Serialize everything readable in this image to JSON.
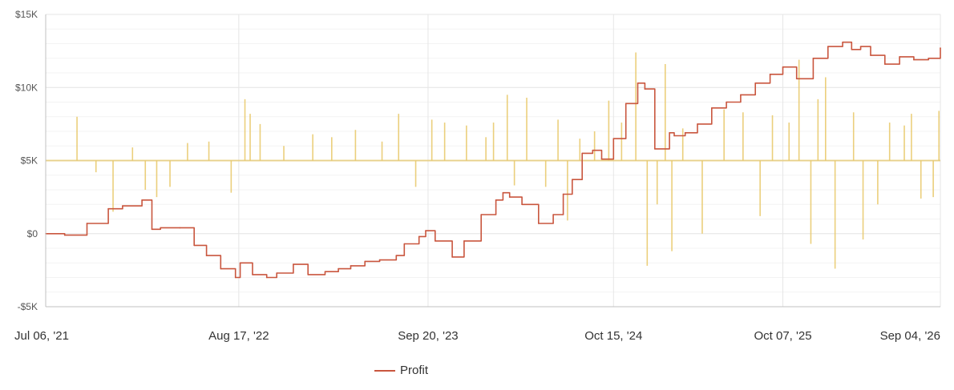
{
  "chart_data": {
    "type": "line",
    "y_tick_labels": [
      "$15K",
      "$10K",
      "$5K",
      "$0",
      "-$5K"
    ],
    "y_tick_values": [
      15000,
      10000,
      5000,
      0,
      -5000
    ],
    "ylim": [
      -5000,
      15000
    ],
    "x_tick_labels": [
      "Jul 06, '21",
      "Aug 17, '22",
      "Sep 20, '23",
      "Oct 15, '24",
      "Oct 07, '25",
      "Sep 04, '26"
    ],
    "x_tick_dates": [
      "2021-07-06",
      "2022-08-17",
      "2023-09-20",
      "2024-10-15",
      "2025-10-07",
      "2026-09-04"
    ],
    "xlim": [
      "2021-07-06",
      "2026-09-04"
    ],
    "grid": true,
    "legend_position": "bottom-center",
    "colors": {
      "profit": "#c9563e",
      "trades": "#e8c766",
      "grid": "#e6e6e6",
      "axis": "#c0c0c0"
    },
    "series": [
      {
        "name": "Profit",
        "kind": "line",
        "x": [
          "2021-07-06",
          "2021-08-15",
          "2021-10-01",
          "2021-11-15",
          "2021-12-15",
          "2022-01-25",
          "2022-02-15",
          "2022-03-05",
          "2022-04-15",
          "2022-05-15",
          "2022-06-10",
          "2022-07-10",
          "2022-08-10",
          "2022-08-20",
          "2022-09-15",
          "2022-10-15",
          "2022-11-05",
          "2022-12-10",
          "2023-01-10",
          "2023-02-15",
          "2023-03-15",
          "2023-04-10",
          "2023-05-10",
          "2023-06-10",
          "2023-07-15",
          "2023-08-01",
          "2023-09-01",
          "2023-09-15",
          "2023-10-05",
          "2023-11-10",
          "2023-12-05",
          "2024-01-10",
          "2024-02-10",
          "2024-02-25",
          "2024-03-10",
          "2024-04-05",
          "2024-05-10",
          "2024-06-10",
          "2024-07-01",
          "2024-07-20",
          "2024-08-10",
          "2024-09-01",
          "2024-09-20",
          "2024-10-15",
          "2024-11-10",
          "2024-12-05",
          "2024-12-20",
          "2025-01-10",
          "2025-02-10",
          "2025-02-20",
          "2025-03-15",
          "2025-04-10",
          "2025-05-10",
          "2025-06-10",
          "2025-07-10",
          "2025-08-10",
          "2025-09-10",
          "2025-10-07",
          "2025-11-05",
          "2025-12-10",
          "2026-01-10",
          "2026-02-10",
          "2026-03-01",
          "2026-03-20",
          "2026-04-10",
          "2026-05-10",
          "2026-06-10",
          "2026-07-10",
          "2026-08-10",
          "2026-09-04"
        ],
        "y": [
          0,
          -100,
          700,
          1700,
          1900,
          2300,
          300,
          400,
          400,
          -800,
          -1500,
          -2400,
          -3000,
          -2000,
          -2800,
          -3000,
          -2700,
          -2100,
          -2800,
          -2600,
          -2400,
          -2200,
          -1900,
          -1800,
          -1500,
          -700,
          -200,
          200,
          -500,
          -1600,
          -500,
          1300,
          2300,
          2800,
          2500,
          2000,
          700,
          1300,
          2700,
          3700,
          5500,
          5700,
          5100,
          6500,
          8900,
          10300,
          9900,
          5800,
          6900,
          6700,
          6900,
          7500,
          8600,
          9000,
          9500,
          10300,
          10900,
          11400,
          10600,
          12000,
          12800,
          13100,
          12600,
          12800,
          12200,
          11600,
          12100,
          11900,
          12000,
          12700
        ]
      },
      {
        "name": "",
        "kind": "bars",
        "x": [
          "2021-09-10",
          "2021-10-20",
          "2021-11-25",
          "2022-01-05",
          "2022-02-01",
          "2022-02-25",
          "2022-03-25",
          "2022-05-01",
          "2022-06-15",
          "2022-08-01",
          "2022-08-30",
          "2022-09-10",
          "2022-10-01",
          "2022-11-20",
          "2023-01-20",
          "2023-03-01",
          "2023-04-20",
          "2023-06-15",
          "2023-07-20",
          "2023-08-25",
          "2023-09-28",
          "2023-10-25",
          "2023-12-10",
          "2024-01-20",
          "2024-02-05",
          "2024-03-05",
          "2024-03-20",
          "2024-04-15",
          "2024-05-25",
          "2024-06-20",
          "2024-07-10",
          "2024-08-05",
          "2024-09-05",
          "2024-10-05",
          "2024-11-01",
          "2024-12-01",
          "2024-12-25",
          "2025-01-15",
          "2025-02-01",
          "2025-02-15",
          "2025-03-10",
          "2025-04-20",
          "2025-06-05",
          "2025-07-15",
          "2025-08-20",
          "2025-09-15",
          "2025-10-20",
          "2025-11-10",
          "2025-12-05",
          "2025-12-20",
          "2026-01-05",
          "2026-01-25",
          "2026-03-05",
          "2026-03-25",
          "2026-04-25",
          "2026-05-20",
          "2026-06-20",
          "2026-07-05",
          "2026-07-25",
          "2026-08-20",
          "2026-09-01"
        ],
        "y": [
          3000,
          -800,
          -3500,
          900,
          -2000,
          -2500,
          -1800,
          1200,
          1300,
          -2200,
          4200,
          3200,
          2500,
          1000,
          1800,
          1600,
          2100,
          1300,
          3200,
          -1800,
          2800,
          2600,
          2400,
          1600,
          2600,
          4500,
          -1700,
          4300,
          -1800,
          2800,
          -4100,
          1500,
          2000,
          4100,
          2600,
          7400,
          -7200,
          -3000,
          6600,
          -6200,
          2200,
          -5000,
          3500,
          3300,
          -3800,
          3100,
          2600,
          6900,
          -5700,
          4200,
          5700,
          -7400,
          3300,
          -5400,
          -3000,
          2600,
          2400,
          3200,
          -2600,
          -2500,
          3400
        ]
      }
    ]
  }
}
